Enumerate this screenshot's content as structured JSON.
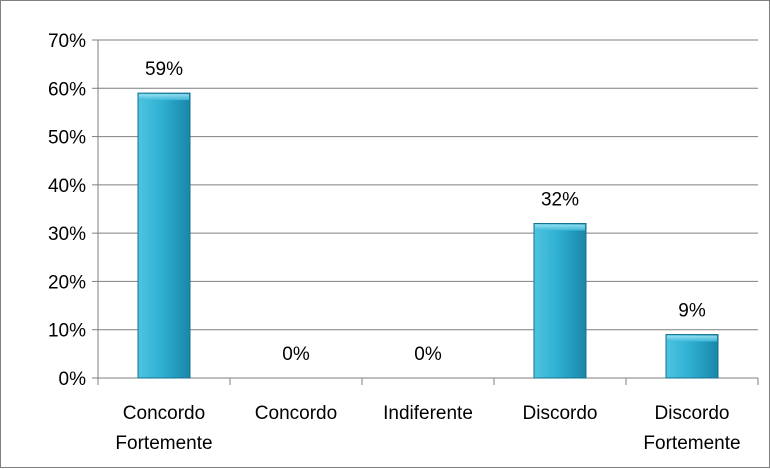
{
  "chart_data": {
    "type": "bar",
    "title": "",
    "xlabel": "",
    "ylabel": "",
    "categories": [
      [
        "Concordo",
        "Fortemente"
      ],
      [
        "Concordo"
      ],
      [
        "Indiferente"
      ],
      [
        "Discordo"
      ],
      [
        "Discordo",
        "Fortemente"
      ]
    ],
    "values": [
      59,
      0,
      0,
      32,
      9
    ],
    "data_labels": [
      "59%",
      "0%",
      "0%",
      "32%",
      "9%"
    ],
    "ylim": [
      0,
      70
    ],
    "yticks": [
      0,
      10,
      20,
      30,
      40,
      50,
      60,
      70
    ],
    "ytick_labels": [
      "0%",
      "10%",
      "20%",
      "30%",
      "40%",
      "50%",
      "60%",
      "70%"
    ],
    "grid": true,
    "legend": "none",
    "colors": {
      "bar_top": "#4fc4e0",
      "bar_mid": "#2fb0d2",
      "bar_bottom": "#1a86a8",
      "bar_stroke": "#15728f",
      "grid": "#7f7f7f",
      "axis": "#7f7f7f",
      "text": "#000000"
    }
  }
}
